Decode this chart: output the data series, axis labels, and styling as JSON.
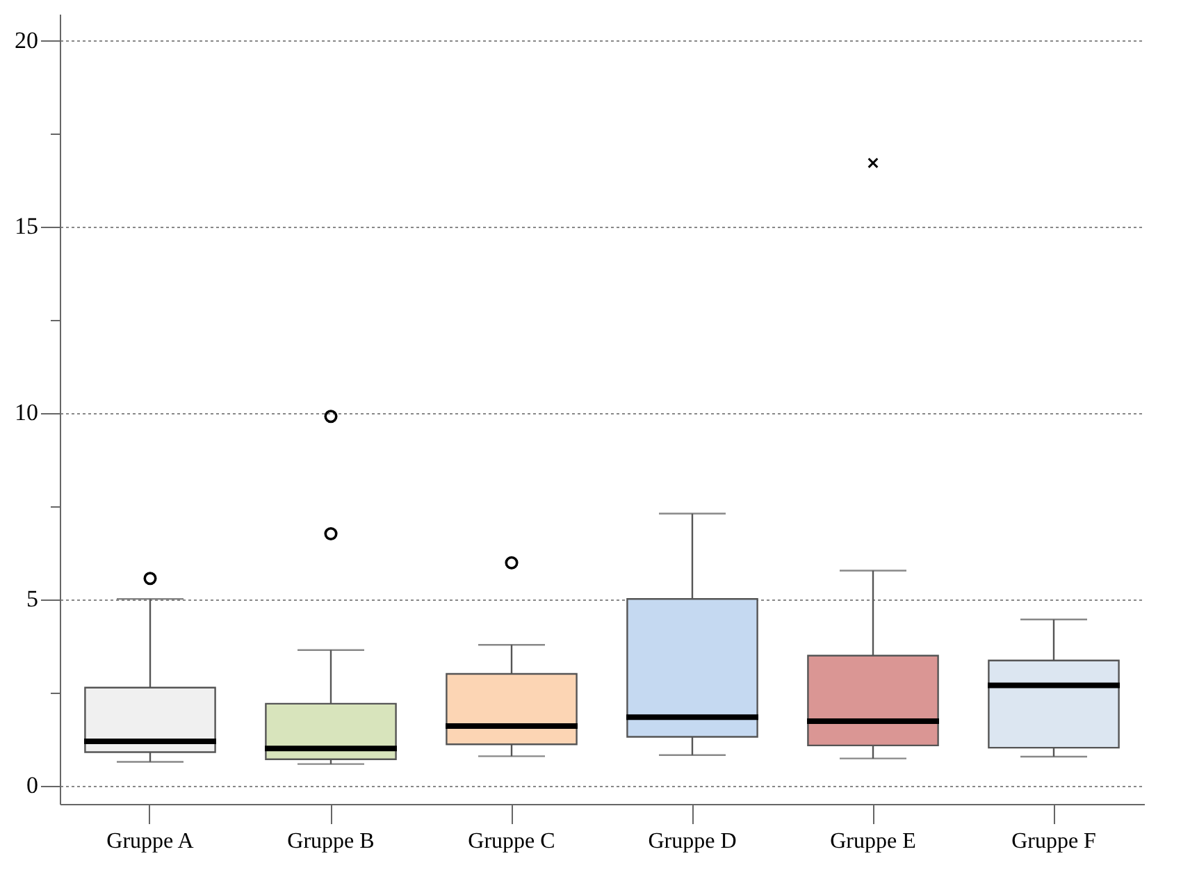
{
  "chart_data": {
    "type": "box",
    "categories": [
      "Gruppe A",
      "Gruppe B",
      "Gruppe C",
      "Gruppe D",
      "Gruppe E",
      "Gruppe F"
    ],
    "colors": [
      "#f0f0f0",
      "#d8e4bc",
      "#fcd5b4",
      "#c5d9f1",
      "#da9694",
      "#dce6f1"
    ],
    "boxes": [
      {
        "low": 0.63,
        "q1": 0.89,
        "median": 1.18,
        "q3": 2.62,
        "high": 5.0,
        "outliers": [
          5.55
        ]
      },
      {
        "low": 0.57,
        "q1": 0.7,
        "median": 0.99,
        "q3": 2.19,
        "high": 3.63,
        "outliers": [
          6.75,
          9.9
        ]
      },
      {
        "low": 0.78,
        "q1": 1.1,
        "median": 1.59,
        "q3": 2.99,
        "high": 3.77,
        "outliers": [
          5.97
        ]
      },
      {
        "low": 0.81,
        "q1": 1.3,
        "median": 1.83,
        "q3": 5.0,
        "high": 7.29
      },
      {
        "low": 0.72,
        "q1": 1.07,
        "median": 1.72,
        "q3": 3.48,
        "high": 5.76
      },
      {
        "low": 0.77,
        "q1": 1.01,
        "median": 2.68,
        "q3": 3.35,
        "high": 4.45
      }
    ],
    "series": [
      {
        "type": "scatter",
        "color": "#000000",
        "marker": "cross",
        "x": [
          "Gruppe E"
        ],
        "values": [
          16.7
        ]
      }
    ],
    "ylim": [
      -0.5,
      20.7
    ],
    "yticks": [
      0,
      {
        "value": 2.5,
        "label": null
      },
      5,
      {
        "value": 7.5,
        "label": null
      },
      10,
      {
        "value": 12.5,
        "label": null
      },
      15,
      {
        "value": 17.5,
        "label": null
      },
      20
    ],
    "grid": "y"
  }
}
